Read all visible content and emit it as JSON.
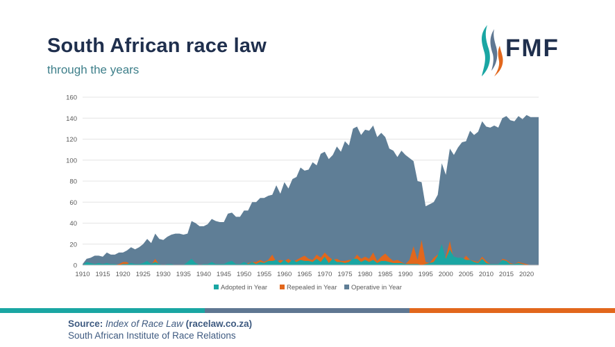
{
  "header": {
    "title": "South African race law",
    "subtitle": "through the years"
  },
  "logo": {
    "text": "FMF",
    "colors": [
      "#1aa6a3",
      "#5f7792",
      "#e2671c"
    ]
  },
  "footer": {
    "source_label": "Source:",
    "source_title": "Index of Race Law",
    "source_url": "(racelaw.co.za)",
    "institute": "South African Institute of Race Relations"
  },
  "chart_data": {
    "type": "area",
    "title": "",
    "xlabel": "",
    "ylabel": "",
    "xlim": [
      1910,
      2023
    ],
    "ylim": [
      0,
      160
    ],
    "yticks": [
      0,
      20,
      40,
      60,
      80,
      100,
      120,
      140,
      160
    ],
    "xticks": [
      1910,
      1915,
      1920,
      1925,
      1930,
      1935,
      1940,
      1945,
      1950,
      1955,
      1960,
      1965,
      1970,
      1975,
      1980,
      1985,
      1990,
      1995,
      2000,
      2005,
      2010,
      2015,
      2020
    ],
    "legend_position": "bottom",
    "series": [
      {
        "name": "Operative in Year",
        "color": "#5f7e96",
        "points": [
          [
            1910,
            1
          ],
          [
            1911,
            6
          ],
          [
            1912,
            7
          ],
          [
            1913,
            9
          ],
          [
            1914,
            9
          ],
          [
            1915,
            8
          ],
          [
            1916,
            12
          ],
          [
            1917,
            10
          ],
          [
            1918,
            10
          ],
          [
            1919,
            12
          ],
          [
            1920,
            12
          ],
          [
            1921,
            14
          ],
          [
            1922,
            17
          ],
          [
            1923,
            15
          ],
          [
            1924,
            17
          ],
          [
            1925,
            20
          ],
          [
            1926,
            25
          ],
          [
            1927,
            21
          ],
          [
            1928,
            30
          ],
          [
            1929,
            25
          ],
          [
            1930,
            24
          ],
          [
            1931,
            27
          ],
          [
            1932,
            29
          ],
          [
            1933,
            30
          ],
          [
            1934,
            30
          ],
          [
            1935,
            29
          ],
          [
            1936,
            30
          ],
          [
            1937,
            42
          ],
          [
            1938,
            40
          ],
          [
            1939,
            37
          ],
          [
            1940,
            37
          ],
          [
            1941,
            39
          ],
          [
            1942,
            44
          ],
          [
            1943,
            42
          ],
          [
            1944,
            41
          ],
          [
            1945,
            41
          ],
          [
            1946,
            49
          ],
          [
            1947,
            50
          ],
          [
            1948,
            46
          ],
          [
            1949,
            46
          ],
          [
            1950,
            52
          ],
          [
            1951,
            52
          ],
          [
            1952,
            60
          ],
          [
            1953,
            60
          ],
          [
            1954,
            64
          ],
          [
            1955,
            64
          ],
          [
            1956,
            66
          ],
          [
            1957,
            67
          ],
          [
            1958,
            76
          ],
          [
            1959,
            68
          ],
          [
            1960,
            79
          ],
          [
            1961,
            73
          ],
          [
            1962,
            82
          ],
          [
            1963,
            84
          ],
          [
            1964,
            93
          ],
          [
            1965,
            90
          ],
          [
            1966,
            91
          ],
          [
            1967,
            98
          ],
          [
            1968,
            95
          ],
          [
            1969,
            106
          ],
          [
            1970,
            108
          ],
          [
            1971,
            101
          ],
          [
            1972,
            105
          ],
          [
            1973,
            113
          ],
          [
            1974,
            108
          ],
          [
            1975,
            118
          ],
          [
            1976,
            114
          ],
          [
            1977,
            130
          ],
          [
            1978,
            132
          ],
          [
            1979,
            124
          ],
          [
            1980,
            129
          ],
          [
            1981,
            128
          ],
          [
            1982,
            133
          ],
          [
            1983,
            122
          ],
          [
            1984,
            126
          ],
          [
            1985,
            122
          ],
          [
            1986,
            111
          ],
          [
            1987,
            109
          ],
          [
            1988,
            103
          ],
          [
            1989,
            109
          ],
          [
            1990,
            105
          ],
          [
            1991,
            102
          ],
          [
            1992,
            99
          ],
          [
            1993,
            80
          ],
          [
            1994,
            79
          ],
          [
            1995,
            56
          ],
          [
            1996,
            58
          ],
          [
            1997,
            60
          ],
          [
            1998,
            67
          ],
          [
            1999,
            97
          ],
          [
            2000,
            86
          ],
          [
            2001,
            111
          ],
          [
            2002,
            105
          ],
          [
            2003,
            112
          ],
          [
            2004,
            117
          ],
          [
            2005,
            118
          ],
          [
            2006,
            128
          ],
          [
            2007,
            124
          ],
          [
            2008,
            127
          ],
          [
            2009,
            137
          ],
          [
            2010,
            132
          ],
          [
            2011,
            131
          ],
          [
            2012,
            133
          ],
          [
            2013,
            131
          ],
          [
            2014,
            140
          ],
          [
            2015,
            142
          ],
          [
            2016,
            138
          ],
          [
            2017,
            137
          ],
          [
            2018,
            142
          ],
          [
            2019,
            139
          ],
          [
            2020,
            143
          ],
          [
            2021,
            141
          ],
          [
            2022,
            141
          ],
          [
            2023,
            141
          ]
        ]
      },
      {
        "name": "Repealed in Year",
        "color": "#e2671c",
        "points": [
          [
            1910,
            0
          ],
          [
            1918,
            0
          ],
          [
            1919,
            1
          ],
          [
            1920,
            3
          ],
          [
            1921,
            3
          ],
          [
            1922,
            0
          ],
          [
            1927,
            0
          ],
          [
            1928,
            6
          ],
          [
            1929,
            0
          ],
          [
            1950,
            0
          ],
          [
            1951,
            2
          ],
          [
            1952,
            3
          ],
          [
            1953,
            3
          ],
          [
            1954,
            5
          ],
          [
            1955,
            3
          ],
          [
            1956,
            5
          ],
          [
            1957,
            10
          ],
          [
            1958,
            3
          ],
          [
            1959,
            5
          ],
          [
            1960,
            4
          ],
          [
            1961,
            6
          ],
          [
            1962,
            3
          ],
          [
            1963,
            5
          ],
          [
            1964,
            7
          ],
          [
            1965,
            9
          ],
          [
            1966,
            6
          ],
          [
            1967,
            5
          ],
          [
            1968,
            10
          ],
          [
            1969,
            7
          ],
          [
            1970,
            12
          ],
          [
            1971,
            8
          ],
          [
            1972,
            5
          ],
          [
            1973,
            6
          ],
          [
            1974,
            4
          ],
          [
            1975,
            4
          ],
          [
            1976,
            5
          ],
          [
            1977,
            5
          ],
          [
            1978,
            10
          ],
          [
            1979,
            6
          ],
          [
            1980,
            8
          ],
          [
            1981,
            6
          ],
          [
            1982,
            12
          ],
          [
            1983,
            4
          ],
          [
            1984,
            8
          ],
          [
            1985,
            11
          ],
          [
            1986,
            7
          ],
          [
            1987,
            4
          ],
          [
            1988,
            5
          ],
          [
            1989,
            3
          ],
          [
            1990,
            1
          ],
          [
            1991,
            5
          ],
          [
            1992,
            18
          ],
          [
            1993,
            5
          ],
          [
            1994,
            24
          ],
          [
            1995,
            3
          ],
          [
            1996,
            2
          ],
          [
            1997,
            7
          ],
          [
            1998,
            10
          ],
          [
            1999,
            5
          ],
          [
            2000,
            8
          ],
          [
            2001,
            23
          ],
          [
            2002,
            5
          ],
          [
            2003,
            5
          ],
          [
            2004,
            4
          ],
          [
            2005,
            9
          ],
          [
            2006,
            5
          ],
          [
            2007,
            4
          ],
          [
            2008,
            3
          ],
          [
            2009,
            8
          ],
          [
            2010,
            4
          ],
          [
            2011,
            1
          ],
          [
            2012,
            1
          ],
          [
            2013,
            0
          ],
          [
            2014,
            6
          ],
          [
            2015,
            5
          ],
          [
            2016,
            2
          ],
          [
            2017,
            1
          ],
          [
            2018,
            3
          ],
          [
            2019,
            2
          ],
          [
            2020,
            1
          ],
          [
            2021,
            0
          ],
          [
            2023,
            0
          ]
        ]
      },
      {
        "name": "Adopted in Year",
        "color": "#1aa6a3",
        "points": [
          [
            1910,
            0
          ],
          [
            1911,
            3
          ],
          [
            1912,
            2
          ],
          [
            1913,
            1
          ],
          [
            1914,
            2
          ],
          [
            1915,
            1
          ],
          [
            1916,
            2
          ],
          [
            1917,
            1
          ],
          [
            1918,
            1
          ],
          [
            1919,
            0
          ],
          [
            1920,
            1
          ],
          [
            1921,
            1
          ],
          [
            1922,
            2
          ],
          [
            1923,
            1
          ],
          [
            1924,
            1
          ],
          [
            1925,
            2
          ],
          [
            1926,
            4
          ],
          [
            1927,
            1
          ],
          [
            1928,
            3
          ],
          [
            1929,
            1
          ],
          [
            1930,
            0
          ],
          [
            1931,
            1
          ],
          [
            1932,
            1
          ],
          [
            1933,
            0
          ],
          [
            1934,
            0
          ],
          [
            1935,
            0
          ],
          [
            1936,
            3
          ],
          [
            1937,
            6
          ],
          [
            1938,
            2
          ],
          [
            1939,
            0
          ],
          [
            1940,
            1
          ],
          [
            1941,
            1
          ],
          [
            1942,
            3
          ],
          [
            1943,
            1
          ],
          [
            1944,
            1
          ],
          [
            1945,
            1
          ],
          [
            1946,
            3
          ],
          [
            1947,
            4
          ],
          [
            1948,
            1
          ],
          [
            1949,
            1
          ],
          [
            1950,
            3
          ],
          [
            1951,
            1
          ],
          [
            1952,
            3
          ],
          [
            1953,
            1
          ],
          [
            1954,
            3
          ],
          [
            1955,
            2
          ],
          [
            1956,
            4
          ],
          [
            1957,
            4
          ],
          [
            1958,
            5
          ],
          [
            1959,
            2
          ],
          [
            1960,
            5
          ],
          [
            1961,
            2
          ],
          [
            1962,
            5
          ],
          [
            1963,
            3
          ],
          [
            1964,
            5
          ],
          [
            1965,
            4
          ],
          [
            1966,
            4
          ],
          [
            1967,
            3
          ],
          [
            1968,
            6
          ],
          [
            1969,
            3
          ],
          [
            1970,
            8
          ],
          [
            1971,
            2
          ],
          [
            1972,
            6
          ],
          [
            1973,
            3
          ],
          [
            1974,
            3
          ],
          [
            1975,
            2
          ],
          [
            1976,
            3
          ],
          [
            1977,
            6
          ],
          [
            1978,
            6
          ],
          [
            1979,
            3
          ],
          [
            1980,
            5
          ],
          [
            1981,
            3
          ],
          [
            1982,
            5
          ],
          [
            1983,
            2
          ],
          [
            1984,
            4
          ],
          [
            1985,
            4
          ],
          [
            1986,
            3
          ],
          [
            1987,
            2
          ],
          [
            1988,
            2
          ],
          [
            1989,
            2
          ],
          [
            1990,
            1
          ],
          [
            1991,
            1
          ],
          [
            1992,
            1
          ],
          [
            1993,
            1
          ],
          [
            1994,
            0
          ],
          [
            1995,
            1
          ],
          [
            1996,
            2
          ],
          [
            1997,
            3
          ],
          [
            1998,
            9
          ],
          [
            1999,
            20
          ],
          [
            2000,
            6
          ],
          [
            2001,
            15
          ],
          [
            2002,
            8
          ],
          [
            2003,
            7
          ],
          [
            2004,
            7
          ],
          [
            2005,
            5
          ],
          [
            2006,
            5
          ],
          [
            2007,
            3
          ],
          [
            2008,
            2
          ],
          [
            2009,
            6
          ],
          [
            2010,
            2
          ],
          [
            2011,
            1
          ],
          [
            2012,
            1
          ],
          [
            2013,
            1
          ],
          [
            2014,
            5
          ],
          [
            2015,
            4
          ],
          [
            2016,
            1
          ],
          [
            2017,
            1
          ],
          [
            2018,
            2
          ],
          [
            2019,
            1
          ],
          [
            2020,
            0
          ],
          [
            2021,
            0
          ],
          [
            2023,
            0
          ]
        ]
      }
    ],
    "legend": [
      {
        "name": "Adopted in Year",
        "color": "#1aa6a3"
      },
      {
        "name": "Repealed in Year",
        "color": "#e2671c"
      },
      {
        "name": "Operative in Year",
        "color": "#5f7e96"
      }
    ]
  }
}
